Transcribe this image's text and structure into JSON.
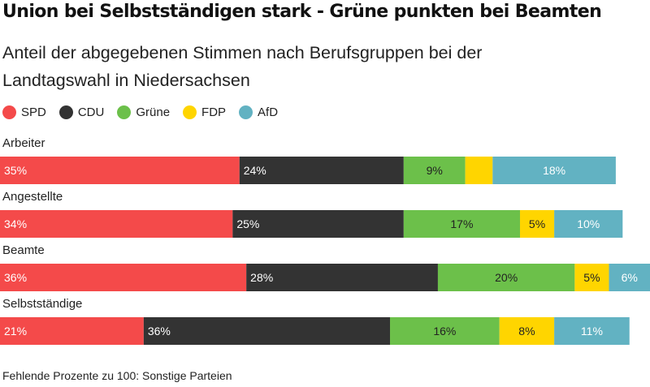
{
  "title": "Union bei Selbstständigen stark - Grüne punkten bei Beamten",
  "subtitle": "Anteil der abgegebenen Stimmen nach Berufsgruppen bei der Landtagswahl in Niedersachsen",
  "note": "Fehlende Prozente zu 100: Sonstige Parteien",
  "legend": [
    {
      "label": "SPD",
      "color": "#f44a4a"
    },
    {
      "label": "CDU",
      "color": "#333333"
    },
    {
      "label": "Grüne",
      "color": "#6cc04a"
    },
    {
      "label": "FDP",
      "color": "#ffd500"
    },
    {
      "label": "AfD",
      "color": "#62b2c2"
    }
  ],
  "chart_data": {
    "type": "bar",
    "orientation": "horizontal",
    "stacked": true,
    "categories": [
      "Arbeiter",
      "Angestellte",
      "Beamte",
      "Selbstständige"
    ],
    "series": [
      {
        "name": "SPD",
        "color": "#f44a4a",
        "label_color": "#ffffff",
        "values": [
          35,
          34,
          36,
          21
        ]
      },
      {
        "name": "CDU",
        "color": "#333333",
        "label_color": "#ffffff",
        "values": [
          24,
          25,
          28,
          36
        ]
      },
      {
        "name": "Grüne",
        "color": "#6cc04a",
        "label_color": "#222222",
        "values": [
          9,
          17,
          20,
          16
        ]
      },
      {
        "name": "FDP",
        "color": "#ffd500",
        "label_color": "#222222",
        "values": [
          4,
          5,
          5,
          8
        ]
      },
      {
        "name": "AfD",
        "color": "#62b2c2",
        "label_color": "#ffffff",
        "values": [
          18,
          10,
          6,
          11
        ]
      }
    ],
    "labels": [
      [
        "35%",
        "24%",
        "9%",
        "",
        "18%"
      ],
      [
        "34%",
        "25%",
        "17%",
        "5%",
        "10%"
      ],
      [
        "36%",
        "28%",
        "20%",
        "5%",
        "6%"
      ],
      [
        "21%",
        "36%",
        "16%",
        "8%",
        "11%"
      ]
    ],
    "xlim": [
      0,
      95
    ]
  }
}
